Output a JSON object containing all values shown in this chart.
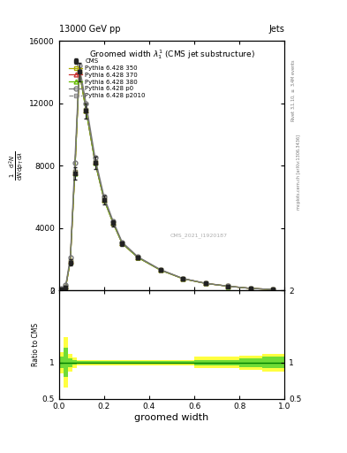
{
  "header_left": "13000 GeV pp",
  "header_right": "Jets",
  "title": "Groomed width $\\lambda_1^1$ (CMS jet substructure)",
  "xlabel": "groomed width",
  "ylabel_main": "$\\frac{1}{\\mathrm{d}N}\\frac{\\mathrm{d}^2N}{\\mathrm{d}p_\\mathrm{T}\\,\\mathrm{d}\\lambda}$",
  "ylabel_ratio": "Ratio to CMS",
  "right_label_top": "Rivet 3.1.10, $\\geq$ 3.4M events",
  "right_label_bot": "mcplots.cern.ch [arXiv:1306.3436]",
  "watermark": "CMS_2021_I1920187",
  "bin_edges": [
    0.0,
    0.02,
    0.04,
    0.06,
    0.08,
    0.1,
    0.14,
    0.18,
    0.22,
    0.26,
    0.3,
    0.4,
    0.5,
    0.6,
    0.7,
    0.8,
    0.9,
    1.0
  ],
  "cms_values": [
    60,
    200,
    1800,
    7500,
    14000,
    11500,
    8200,
    5800,
    4300,
    3000,
    2100,
    1300,
    750,
    450,
    270,
    130,
    60
  ],
  "cms_errors": [
    15,
    40,
    200,
    400,
    600,
    500,
    400,
    300,
    200,
    150,
    100,
    65,
    38,
    23,
    14,
    7,
    4
  ],
  "p350_values": [
    80,
    250,
    1900,
    7600,
    14100,
    11600,
    8250,
    5850,
    4340,
    3030,
    2120,
    1310,
    755,
    453,
    272,
    132,
    61
  ],
  "p370_values": [
    75,
    240,
    1870,
    7550,
    14050,
    11550,
    8220,
    5820,
    4320,
    3015,
    2110,
    1305,
    752,
    451,
    271,
    131,
    61
  ],
  "p380_values": [
    72,
    235,
    1850,
    7520,
    14020,
    11520,
    8200,
    5800,
    4310,
    3005,
    2105,
    1302,
    750,
    450,
    270,
    130,
    60
  ],
  "pp0_values": [
    120,
    350,
    2100,
    8200,
    14400,
    12000,
    8500,
    6000,
    4450,
    3100,
    2160,
    1340,
    770,
    462,
    276,
    134,
    62
  ],
  "pp2010_values": [
    80,
    250,
    1900,
    7600,
    14100,
    11600,
    8250,
    5850,
    4340,
    3030,
    2120,
    1310,
    755,
    453,
    272,
    132,
    61
  ],
  "ratio_green_upper": [
    1.08,
    1.2,
    1.06,
    1.03,
    1.02,
    1.02,
    1.02,
    1.02,
    1.02,
    1.02,
    1.02,
    1.02,
    1.02,
    1.04,
    1.04,
    1.06,
    1.08
  ],
  "ratio_green_lower": [
    0.92,
    0.8,
    0.94,
    0.97,
    0.98,
    0.98,
    0.98,
    0.98,
    0.98,
    0.98,
    0.98,
    0.98,
    0.98,
    0.96,
    0.96,
    0.94,
    0.92
  ],
  "ratio_yellow_upper": [
    1.15,
    1.35,
    1.12,
    1.07,
    1.04,
    1.04,
    1.04,
    1.04,
    1.04,
    1.04,
    1.04,
    1.04,
    1.04,
    1.08,
    1.08,
    1.1,
    1.12
  ],
  "ratio_yellow_lower": [
    0.85,
    0.65,
    0.88,
    0.93,
    0.96,
    0.96,
    0.96,
    0.96,
    0.96,
    0.96,
    0.96,
    0.96,
    0.96,
    0.92,
    0.92,
    0.9,
    0.88
  ],
  "color_p350": "#aaaa00",
  "color_p370": "#cc3333",
  "color_p380": "#66bb00",
  "color_pp0": "#777777",
  "color_pp2010": "#777777",
  "color_cms": "#222222",
  "ylim_main_log": false,
  "ylim_main": [
    0,
    16000
  ],
  "ylim_ratio": [
    0.5,
    2.0
  ],
  "xlim": [
    0.0,
    1.0
  ]
}
